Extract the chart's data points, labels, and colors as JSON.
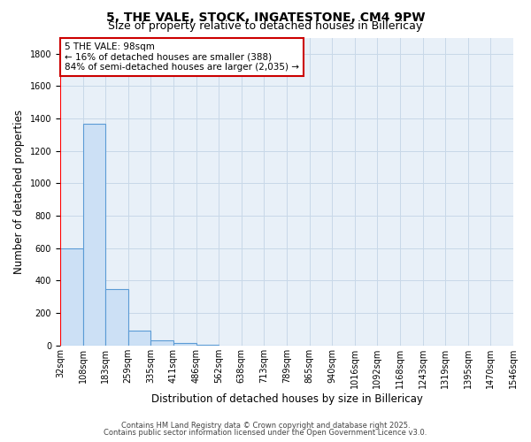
{
  "title": "5, THE VALE, STOCK, INGATESTONE, CM4 9PW",
  "subtitle": "Size of property relative to detached houses in Billericay",
  "xlabel": "Distribution of detached houses by size in Billericay",
  "ylabel": "Number of detached properties",
  "bar_labels": [
    "32sqm",
    "108sqm",
    "183sqm",
    "259sqm",
    "335sqm",
    "411sqm",
    "486sqm",
    "562sqm",
    "638sqm",
    "713sqm",
    "789sqm",
    "865sqm",
    "940sqm",
    "1016sqm",
    "1092sqm",
    "1168sqm",
    "1243sqm",
    "1319sqm",
    "1395sqm",
    "1470sqm",
    "1546sqm"
  ],
  "bar_values": [
    600,
    1370,
    350,
    90,
    30,
    15,
    5,
    0,
    0,
    0,
    0,
    0,
    0,
    0,
    0,
    0,
    0,
    0,
    0,
    0
  ],
  "bar_color": "#cce0f5",
  "bar_edge_color": "#5b9bd5",
  "ylim": [
    0,
    1900
  ],
  "yticks": [
    0,
    200,
    400,
    600,
    800,
    1000,
    1200,
    1400,
    1600,
    1800
  ],
  "annotation_text": "5 THE VALE: 98sqm\n← 16% of detached houses are smaller (388)\n84% of semi-detached houses are larger (2,035) →",
  "annotation_box_color": "#ffffff",
  "annotation_box_edge_color": "#cc0000",
  "grid_color": "#c8d8e8",
  "background_color": "#e8f0f8",
  "footer_line1": "Contains HM Land Registry data © Crown copyright and database right 2025.",
  "footer_line2": "Contains public sector information licensed under the Open Government Licence v3.0.",
  "title_fontsize": 10,
  "subtitle_fontsize": 9,
  "tick_fontsize": 7,
  "ylabel_fontsize": 8.5,
  "xlabel_fontsize": 8.5,
  "annotation_fontsize": 7.5,
  "footer_fontsize": 6
}
